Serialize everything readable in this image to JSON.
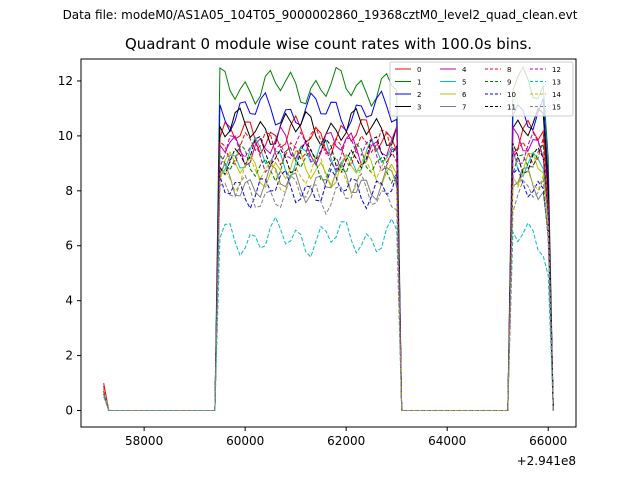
{
  "suptitle": "Data file: modeM0/AS1A05_104T05_9000002860_19368cztM0_level2_quad_clean.evt",
  "chart_data": {
    "type": "line",
    "title": "Quadrant 0 module wise count rates with 100.0s bins.",
    "xlabel": "",
    "ylabel": "",
    "x_offset_label": "+2.941e8",
    "xlim": [
      56750,
      66550
    ],
    "ylim": [
      -0.6,
      12.8
    ],
    "xticks": [
      58000,
      60000,
      62000,
      64000,
      66000
    ],
    "xtick_labels": [
      "58000",
      "60000",
      "62000",
      "64000",
      "66000"
    ],
    "yticks": [
      0,
      2,
      4,
      6,
      8,
      10,
      12
    ],
    "ytick_labels": [
      "0",
      "2",
      "4",
      "6",
      "8",
      "10",
      "12"
    ],
    "bins": {
      "t0": 57200,
      "dt": 100
    },
    "segments": [
      {
        "start": 59500,
        "end": 63000
      },
      {
        "start": 65300,
        "end": 66000
      }
    ],
    "legend_position": "upper-right",
    "series": [
      {
        "name": "0",
        "color": "#ff0000",
        "dash": "solid",
        "level": 10.0,
        "start": 1.0
      },
      {
        "name": "1",
        "color": "#008000",
        "dash": "solid",
        "level": 11.8,
        "start": 0.8
      },
      {
        "name": "2",
        "color": "#0000ff",
        "dash": "solid",
        "level": 10.9,
        "start": 0.7
      },
      {
        "name": "3",
        "color": "#000000",
        "dash": "solid",
        "level": 10.3,
        "start": 0.6
      },
      {
        "name": "4",
        "color": "#bf00bf",
        "dash": "solid",
        "level": 9.6,
        "start": 0.9
      },
      {
        "name": "5",
        "color": "#00bfbf",
        "dash": "solid",
        "level": 9.2,
        "start": 0.7
      },
      {
        "name": "6",
        "color": "#bfbf00",
        "dash": "solid",
        "level": 8.8,
        "start": 0.8
      },
      {
        "name": "7",
        "color": "#808080",
        "dash": "solid",
        "level": 8.3,
        "start": 0.6
      },
      {
        "name": "8",
        "color": "#ff0000",
        "dash": "dashed",
        "level": 9.6,
        "start": 0.9
      },
      {
        "name": "9",
        "color": "#008000",
        "dash": "dashed",
        "level": 9.0,
        "start": 0.7
      },
      {
        "name": "10",
        "color": "#0000ff",
        "dash": "dashed",
        "level": 8.1,
        "start": 0.6
      },
      {
        "name": "11",
        "color": "#000000",
        "dash": "dashed",
        "level": 9.3,
        "start": 0.8
      },
      {
        "name": "12",
        "color": "#bf00bf",
        "dash": "dashed",
        "level": 9.4,
        "start": 0.7
      },
      {
        "name": "13",
        "color": "#00bfbf",
        "dash": "dashed",
        "level": 6.3,
        "start": 0.5
      },
      {
        "name": "14",
        "color": "#bfbf00",
        "dash": "dashed",
        "level": 8.6,
        "start": 0.8
      },
      {
        "name": "15",
        "color": "#808080",
        "dash": "dashed",
        "level": 7.9,
        "start": 0.6
      }
    ]
  }
}
